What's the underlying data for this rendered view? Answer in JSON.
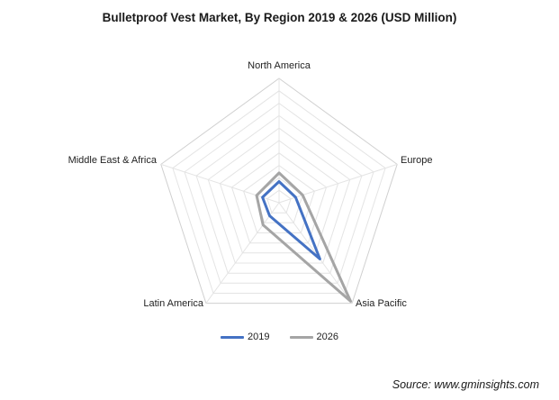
{
  "chart_data": {
    "type": "radar",
    "title": "Bulletproof Vest Market, By Region 2019 & 2026 (USD Million)",
    "axes": [
      "North America",
      "Europe",
      "Asia Pacific",
      "Latin America",
      "Middle East & Africa"
    ],
    "rmax": 100,
    "grid_levels": 10,
    "grid": true,
    "legend_position": "bottom",
    "series": [
      {
        "name": "2019",
        "values": [
          17,
          14,
          56,
          13,
          14
        ],
        "color": "#4472C4"
      },
      {
        "name": "2026",
        "values": [
          24,
          20,
          98,
          22,
          19
        ],
        "color": "#A5A5A5"
      }
    ],
    "source": "Source: www.gminsights.com"
  }
}
